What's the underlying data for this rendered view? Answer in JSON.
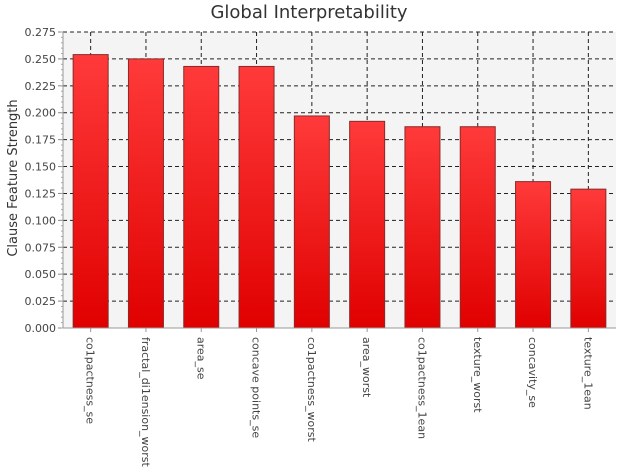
{
  "chart_data": {
    "type": "bar",
    "title": "Global Interpretability",
    "xlabel": "",
    "ylabel": "Clause Feature Strength",
    "categories": [
      "co1pactness_se",
      "fractal_di1ension_worst",
      "area_se",
      "concave points_se",
      "co1pactness_worst",
      "area_worst",
      "co1pactness_1ean",
      "texture_worst",
      "concavity_se",
      "texture_1ean"
    ],
    "values": [
      0.254,
      0.25,
      0.243,
      0.243,
      0.197,
      0.192,
      0.187,
      0.187,
      0.136,
      0.129
    ],
    "ylim": [
      0,
      0.275
    ],
    "yticks": [
      "0.000",
      "0.025",
      "0.050",
      "0.075",
      "0.100",
      "0.125",
      "0.150",
      "0.175",
      "0.200",
      "0.225",
      "0.250",
      "0.275"
    ],
    "grid": true,
    "legend": "none",
    "colors": {
      "bar": "#ee1c1c",
      "bar_light": "#ff3a3a",
      "bar_dark": "#e00000",
      "bar_edge": "#8a2a2a",
      "plot_bg": "#f4f4f4",
      "grid": "#222222"
    }
  }
}
